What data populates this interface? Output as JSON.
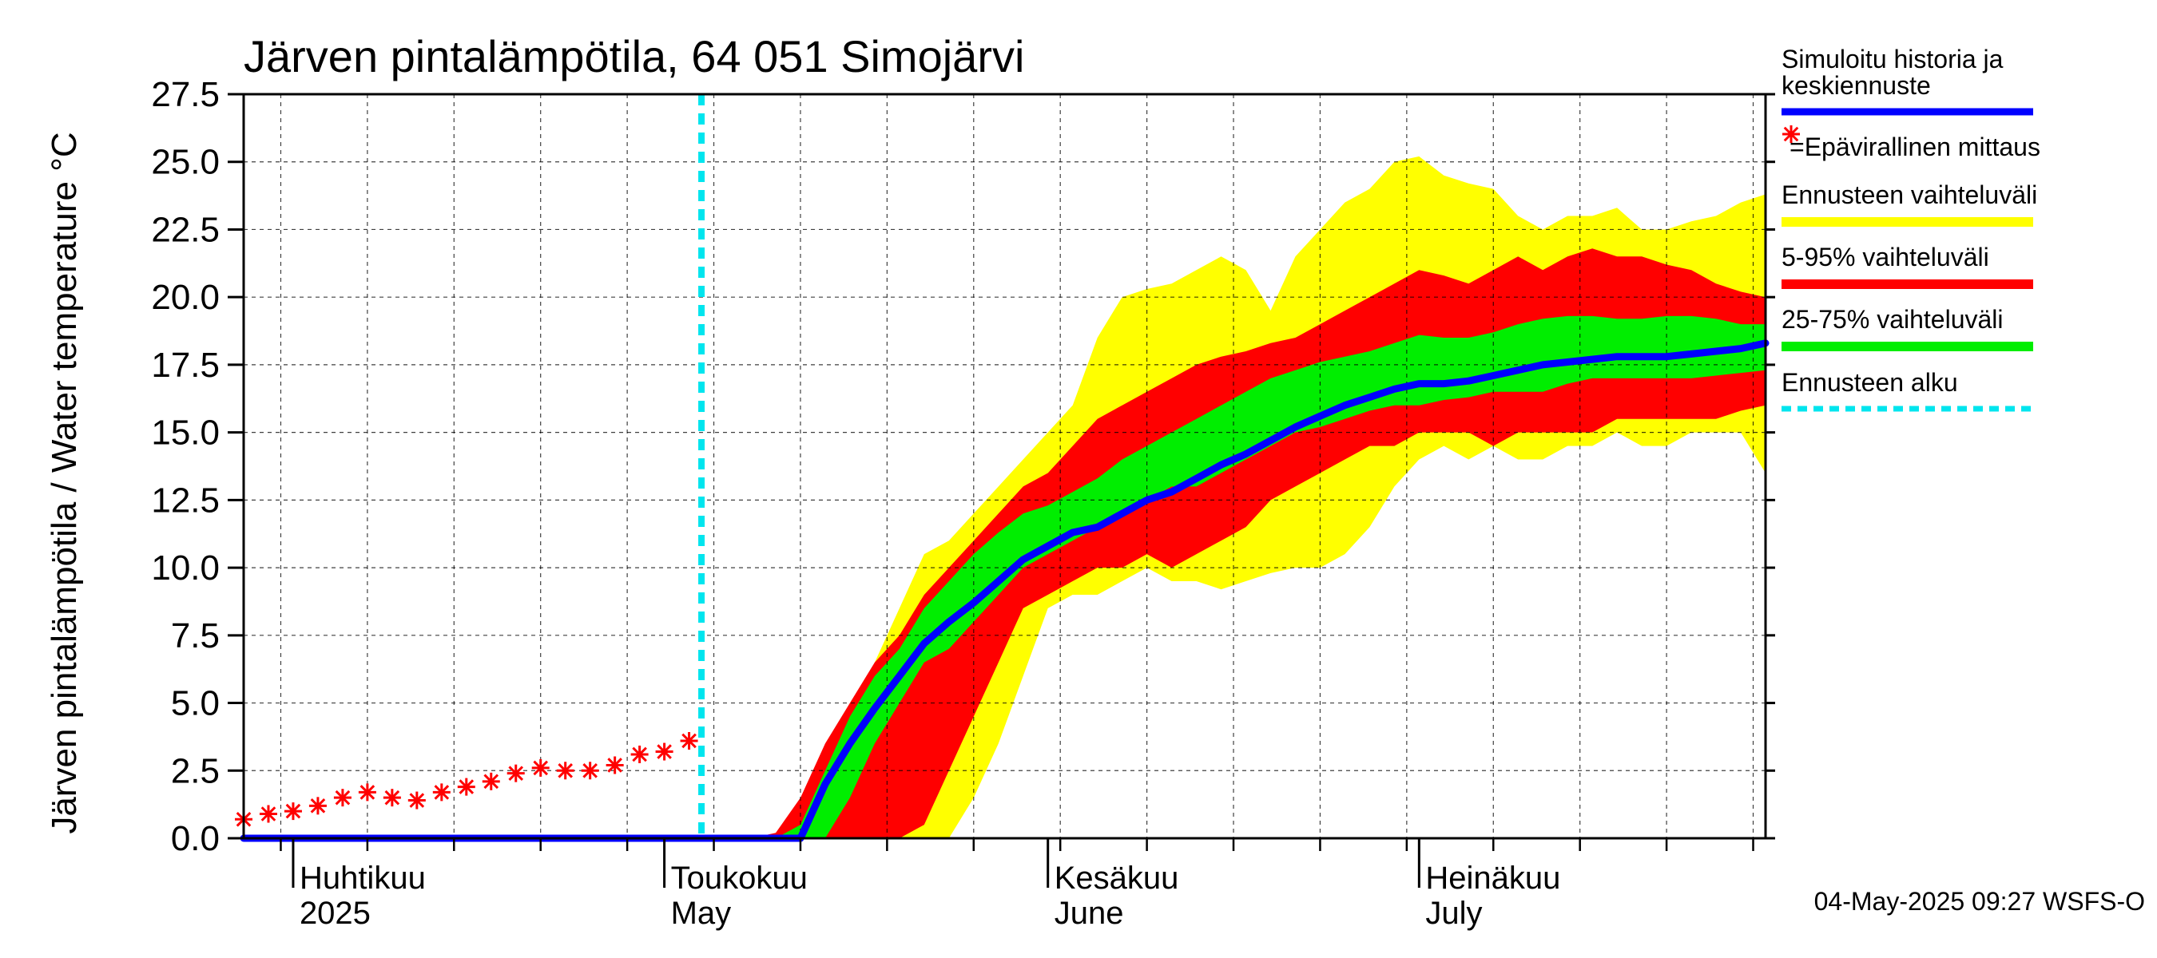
{
  "chart_data": {
    "type": "area",
    "title": "Järven pintalämpötila, 64 051 Simojärvi",
    "ylabel": "Järven pintalämpötila / Water temperature °C",
    "ylim": [
      0,
      27.5
    ],
    "yticks": [
      "0.0",
      "2.5",
      "5.0",
      "7.5",
      "10.0",
      "12.5",
      "15.0",
      "17.5",
      "20.0",
      "22.5",
      "25.0",
      "27.5"
    ],
    "xlim": [
      "2025-03-28",
      "2025-07-29"
    ],
    "grid": true,
    "months": [
      {
        "fi": "Huhtikuu",
        "en": "2025",
        "date": "2025-04-01"
      },
      {
        "fi": "Toukokuu",
        "en": "May",
        "date": "2025-05-01"
      },
      {
        "fi": "Kesäkuu",
        "en": "June",
        "date": "2025-06-01"
      },
      {
        "fi": "Heinäkuu",
        "en": "July",
        "date": "2025-07-01"
      }
    ],
    "forecast_start": "2025-05-04",
    "x": [
      "2025-03-28",
      "2025-04-01",
      "2025-04-05",
      "2025-04-09",
      "2025-04-13",
      "2025-04-17",
      "2025-04-21",
      "2025-04-25",
      "2025-04-29",
      "2025-05-03",
      "2025-05-04",
      "2025-05-06",
      "2025-05-08",
      "2025-05-10",
      "2025-05-12",
      "2025-05-14",
      "2025-05-16",
      "2025-05-18",
      "2025-05-20",
      "2025-05-22",
      "2025-05-24",
      "2025-05-26",
      "2025-05-28",
      "2025-05-30",
      "2025-06-01",
      "2025-06-03",
      "2025-06-05",
      "2025-06-07",
      "2025-06-09",
      "2025-06-11",
      "2025-06-13",
      "2025-06-15",
      "2025-06-17",
      "2025-06-19",
      "2025-06-21",
      "2025-06-23",
      "2025-06-25",
      "2025-06-27",
      "2025-06-29",
      "2025-07-01",
      "2025-07-03",
      "2025-07-05",
      "2025-07-07",
      "2025-07-09",
      "2025-07-11",
      "2025-07-13",
      "2025-07-15",
      "2025-07-17",
      "2025-07-19",
      "2025-07-21",
      "2025-07-23",
      "2025-07-25",
      "2025-07-27",
      "2025-07-29"
    ],
    "series": [
      {
        "name": "Ennusteen vaihteluväli",
        "color": "#ffff00",
        "lower": [
          0,
          0,
          0,
          0,
          0,
          0,
          0,
          0,
          0,
          0,
          0,
          0,
          0,
          0,
          0,
          0,
          0,
          0,
          0,
          0,
          0,
          1.5,
          3.5,
          6.0,
          8.5,
          9.0,
          9.0,
          9.5,
          10.0,
          9.5,
          9.5,
          9.2,
          9.5,
          9.8,
          10.0,
          10.0,
          10.5,
          11.5,
          13.0,
          14.0,
          14.5,
          14.0,
          14.5,
          14.0,
          14.0,
          14.5,
          14.5,
          15.0,
          14.5,
          14.5,
          15.0,
          15.0,
          15.0,
          13.5
        ],
        "upper": [
          0,
          0,
          0,
          0,
          0,
          0,
          0,
          0,
          0,
          0,
          0,
          0,
          0,
          0,
          0.5,
          2.0,
          4.5,
          6.5,
          8.5,
          10.5,
          11.0,
          12.0,
          13.0,
          14.0,
          15.0,
          16.0,
          18.5,
          20.0,
          20.3,
          20.5,
          21.0,
          21.5,
          21.0,
          19.5,
          21.5,
          22.5,
          23.5,
          24.0,
          25.0,
          25.2,
          24.5,
          24.2,
          24.0,
          23.0,
          22.5,
          23.0,
          23.0,
          23.3,
          22.5,
          22.5,
          22.8,
          23.0,
          23.5,
          23.8
        ]
      },
      {
        "name": "5-95% vaihteluväli",
        "color": "#ff0000",
        "lower": [
          0,
          0,
          0,
          0,
          0,
          0,
          0,
          0,
          0,
          0,
          0,
          0,
          0,
          0,
          0,
          0,
          0,
          0,
          0,
          0.5,
          2.5,
          4.5,
          6.5,
          8.5,
          9.0,
          9.5,
          10.0,
          10.0,
          10.5,
          10.0,
          10.5,
          11.0,
          11.5,
          12.5,
          13.0,
          13.5,
          14.0,
          14.5,
          14.5,
          15.0,
          15.0,
          15.0,
          14.5,
          15.0,
          15.0,
          15.0,
          15.0,
          15.5,
          15.5,
          15.5,
          15.5,
          15.5,
          15.8,
          16.0
        ],
        "upper": [
          0,
          0,
          0,
          0,
          0,
          0,
          0,
          0,
          0,
          0,
          0,
          0,
          0,
          0.2,
          1.5,
          3.5,
          5.0,
          6.5,
          7.5,
          9.0,
          10.0,
          11.0,
          12.0,
          13.0,
          13.5,
          14.5,
          15.5,
          16.0,
          16.5,
          17.0,
          17.5,
          17.8,
          18.0,
          18.3,
          18.5,
          19.0,
          19.5,
          20.0,
          20.5,
          21.0,
          20.8,
          20.5,
          21.0,
          21.5,
          21.0,
          21.5,
          21.8,
          21.5,
          21.5,
          21.2,
          21.0,
          20.5,
          20.2,
          20.0
        ]
      },
      {
        "name": "25-75% vaihteluväli",
        "color": "#00ee00",
        "lower": [
          0,
          0,
          0,
          0,
          0,
          0,
          0,
          0,
          0,
          0,
          0,
          0,
          0,
          0,
          0,
          0,
          1.5,
          3.5,
          5.0,
          6.5,
          7.0,
          8.0,
          9.0,
          10.0,
          10.5,
          11.0,
          11.5,
          12.0,
          12.5,
          13.0,
          13.0,
          13.5,
          14.0,
          14.5,
          15.0,
          15.2,
          15.5,
          15.8,
          16.0,
          16.0,
          16.2,
          16.3,
          16.5,
          16.5,
          16.5,
          16.8,
          17.0,
          17.0,
          17.0,
          17.0,
          17.0,
          17.1,
          17.2,
          17.3
        ],
        "upper": [
          0,
          0,
          0,
          0,
          0,
          0,
          0,
          0,
          0,
          0,
          0,
          0,
          0,
          0,
          0.5,
          2.5,
          4.5,
          6.0,
          7.0,
          8.5,
          9.5,
          10.5,
          11.3,
          12.0,
          12.3,
          12.8,
          13.3,
          14.0,
          14.5,
          15.0,
          15.5,
          16.0,
          16.5,
          17.0,
          17.3,
          17.6,
          17.8,
          18.0,
          18.3,
          18.6,
          18.5,
          18.5,
          18.7,
          19.0,
          19.2,
          19.3,
          19.3,
          19.2,
          19.2,
          19.3,
          19.3,
          19.2,
          19.0,
          19.0
        ]
      },
      {
        "name": "Simuloitu historia ja keskiennuste",
        "color": "#0000ff",
        "values": [
          0,
          0,
          0,
          0,
          0,
          0,
          0,
          0,
          0,
          0,
          0,
          0,
          0,
          0,
          0,
          2.0,
          3.5,
          4.8,
          6.0,
          7.2,
          8.0,
          8.7,
          9.5,
          10.3,
          10.8,
          11.3,
          11.5,
          12.0,
          12.5,
          12.8,
          13.3,
          13.8,
          14.2,
          14.7,
          15.2,
          15.6,
          16.0,
          16.3,
          16.6,
          16.8,
          16.8,
          16.9,
          17.1,
          17.3,
          17.5,
          17.6,
          17.7,
          17.8,
          17.8,
          17.8,
          17.9,
          18.0,
          18.1,
          18.3
        ]
      },
      {
        "name": "=Epävirallinen mittaus",
        "color": "#ff0000",
        "x": [
          "2025-03-28",
          "2025-03-30",
          "2025-04-01",
          "2025-04-03",
          "2025-04-05",
          "2025-04-07",
          "2025-04-09",
          "2025-04-11",
          "2025-04-13",
          "2025-04-15",
          "2025-04-17",
          "2025-04-19",
          "2025-04-21",
          "2025-04-23",
          "2025-04-25",
          "2025-04-27",
          "2025-04-29",
          "2025-05-01",
          "2025-05-03"
        ],
        "values": [
          0.7,
          0.9,
          1.0,
          1.2,
          1.5,
          1.7,
          1.5,
          1.4,
          1.7,
          1.9,
          2.1,
          2.4,
          2.6,
          2.5,
          2.5,
          2.7,
          3.1,
          3.2,
          3.6
        ]
      }
    ],
    "legend": [
      {
        "label": "Simuloitu historia ja keskiennuste",
        "color": "#0000ff",
        "style": "line"
      },
      {
        "label": "=Epävirallinen mittaus",
        "color": "#ff0000",
        "style": "marker"
      },
      {
        "label": "Ennusteen vaihteluväli",
        "color": "#ffff00",
        "style": "band"
      },
      {
        "label": "5-95% vaihteluväli",
        "color": "#ff0000",
        "style": "band"
      },
      {
        "label": "25-75% vaihteluväli",
        "color": "#00ee00",
        "style": "band"
      },
      {
        "label": "Ennusteen alku",
        "color": "#00e5ee",
        "style": "dashed"
      }
    ],
    "legend_position": "right",
    "footer": "04-May-2025 09:27 WSFS-O"
  }
}
